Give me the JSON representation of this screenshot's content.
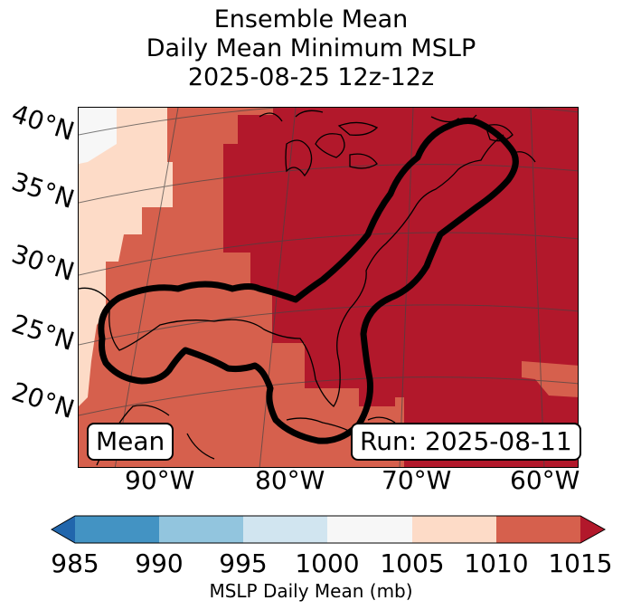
{
  "title": {
    "line1": "Ensemble Mean",
    "line2": "Daily Mean Minimum MSLP",
    "line3": "2025-08-25 12z-12z"
  },
  "map": {
    "lat_labels": [
      "40°N",
      "35°N",
      "30°N",
      "25°N",
      "20°N"
    ],
    "lon_labels": [
      "90°W",
      "80°W",
      "70°W",
      "60°W"
    ],
    "mean_label": "Mean",
    "run_label": "Run: 2025-08-11"
  },
  "colorbar": {
    "label": "MSLP Daily Mean (mb)",
    "ticks": [
      "985",
      "990",
      "995",
      "1000",
      "1005",
      "1010",
      "1015"
    ],
    "colors": {
      "below": "#2166ac",
      "b985_990": "#4393c3",
      "b990_995": "#92c5de",
      "b995_1000": "#d1e5f0",
      "b1000_1005": "#f7f7f7",
      "b1005_1010": "#fddbc7",
      "b1010_1015": "#d6604d",
      "above": "#b2182b"
    }
  }
}
